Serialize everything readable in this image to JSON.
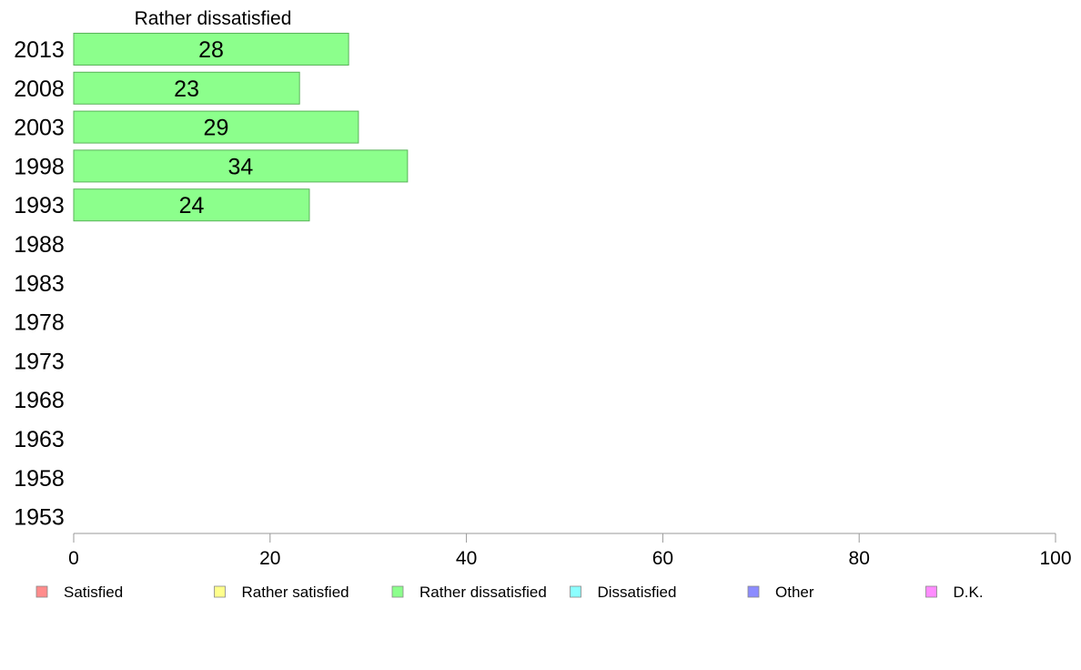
{
  "chart_data": {
    "type": "bar",
    "orientation": "horizontal",
    "title": "Rather dissatisfied",
    "categories": [
      "2013",
      "2008",
      "2003",
      "1998",
      "1993",
      "1988",
      "1983",
      "1978",
      "1973",
      "1968",
      "1963",
      "1958",
      "1953"
    ],
    "series": [
      {
        "name": "Rather dissatisfied",
        "values": [
          28,
          23,
          29,
          34,
          24,
          null,
          null,
          null,
          null,
          null,
          null,
          null,
          null
        ],
        "color": "#8cff8c"
      }
    ],
    "xlim": [
      0,
      100
    ],
    "xticks": [
      0,
      20,
      40,
      60,
      80,
      100
    ],
    "grid": false,
    "legend": {
      "placement": "bottom",
      "items": [
        {
          "label": "Satisfied",
          "color": "#ff8c8c"
        },
        {
          "label": "Rather satisfied",
          "color": "#ffff8c"
        },
        {
          "label": "Rather dissatisfied",
          "color": "#8cff8c"
        },
        {
          "label": "Dissatisfied",
          "color": "#8cffff"
        },
        {
          "label": "Other",
          "color": "#8c8cff"
        },
        {
          "label": "D.K.",
          "color": "#ff8cff"
        }
      ]
    }
  }
}
